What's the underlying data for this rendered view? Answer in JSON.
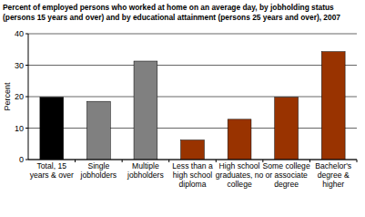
{
  "chart_data": {
    "type": "bar",
    "title": "Percent of employed persons who worked at home on an average day, by jobholding status (persons 15 years and over) and by educational attainment (persons 25 years and over), 2007",
    "y_label": "Percent",
    "categories": [
      "Total, 15 years & over",
      "Single jobholders",
      "Multiple jobholders",
      "Less than a high school diploma",
      "High school graduates, no college",
      "Some college or associate degree",
      "Bachelor's degree & higher"
    ],
    "values": [
      19.8,
      18.5,
      31.3,
      6.2,
      12.8,
      19.8,
      34.3
    ],
    "colors": [
      "#000000",
      "#808080",
      "#808080",
      "#993300",
      "#993300",
      "#993300",
      "#993300"
    ],
    "ylim": [
      0,
      40
    ],
    "yticks": [
      0,
      10,
      20,
      30,
      40
    ],
    "grid": true
  }
}
